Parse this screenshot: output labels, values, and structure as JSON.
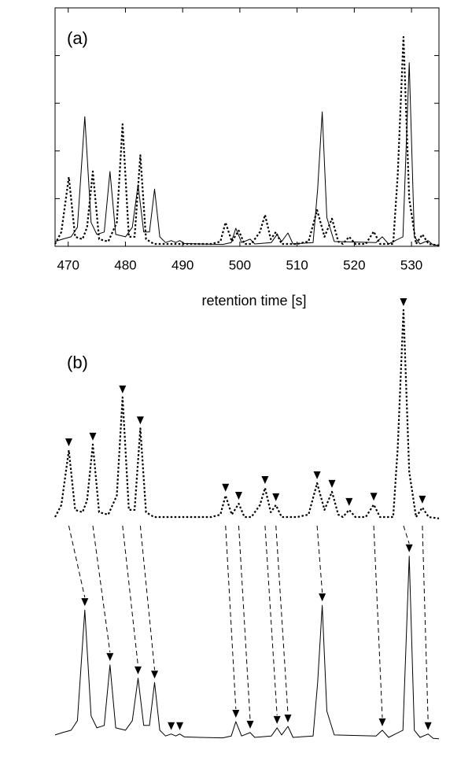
{
  "chart_data": [
    {
      "type": "line",
      "annotation": "(a)",
      "xlabel": "retention time [s]",
      "xlim": [
        467.7,
        534.8
      ],
      "xticks": [
        470,
        480,
        490,
        500,
        510,
        520,
        530
      ],
      "ylim": [
        0,
        5
      ],
      "yticks": [
        1,
        2,
        3,
        4
      ],
      "series": [
        {
          "style": "solid",
          "color": "#000000",
          "x": [
            467.7,
            469,
            470.5,
            471.6,
            472.9,
            474,
            475,
            476.3,
            477.3,
            478.3,
            480,
            481.2,
            482.2,
            483.2,
            484.2,
            485.1,
            486,
            487,
            488,
            488.8,
            489.5,
            490.3,
            493,
            497,
            498.5,
            499.3,
            500.3,
            501.8,
            502.6,
            505.5,
            506.5,
            507.3,
            508.4,
            509.3,
            512.8,
            513.6,
            514.4,
            515.2,
            516.5,
            523.8,
            524.9,
            526,
            528.5,
            529.6,
            530.5,
            531.5,
            532.9,
            533.8,
            534.8
          ],
          "values": [
            0.1,
            0.15,
            0.2,
            0.4,
            2.72,
            0.5,
            0.25,
            0.3,
            1.57,
            0.25,
            0.2,
            0.4,
            1.29,
            0.3,
            0.3,
            1.2,
            0.2,
            0.08,
            0.12,
            0.08,
            0.12,
            0.06,
            0.05,
            0.04,
            0.08,
            0.38,
            0.08,
            0.15,
            0.05,
            0.08,
            0.25,
            0.1,
            0.28,
            0.05,
            0.08,
            1.2,
            2.82,
            0.6,
            0.1,
            0.08,
            0.2,
            0.05,
            0.2,
            3.85,
            0.2,
            0.05,
            0.12,
            0.03,
            0.02
          ]
        },
        {
          "style": "dotted",
          "color": "#000000",
          "x": [
            467.7,
            468.8,
            470.1,
            471.2,
            472.5,
            473.3,
            474.3,
            475.4,
            477,
            478.5,
            479.5,
            480.6,
            481.6,
            482.6,
            483.6,
            485,
            490,
            495,
            496.6,
            497.5,
            498.6,
            499.8,
            500.8,
            502,
            503.5,
            504.4,
            505.4,
            506.3,
            507.3,
            510,
            512,
            513.5,
            514.8,
            516.1,
            517.2,
            518,
            519.1,
            520.2,
            522,
            523.4,
            524.5,
            526.8,
            527.6,
            528.6,
            529.6,
            530.8,
            531.9,
            533,
            534.8
          ],
          "values": [
            0.05,
            0.3,
            1.45,
            0.2,
            0.15,
            0.4,
            1.57,
            0.15,
            0.1,
            0.5,
            2.56,
            0.2,
            0.2,
            1.91,
            0.15,
            0.05,
            0.05,
            0.05,
            0.1,
            0.5,
            0.1,
            0.33,
            0.05,
            0.05,
            0.3,
            0.66,
            0.15,
            0.3,
            0.05,
            0.05,
            0.1,
            0.76,
            0.2,
            0.58,
            0.1,
            0.05,
            0.2,
            0.05,
            0.05,
            0.31,
            0.05,
            0.05,
            1.5,
            4.39,
            1.0,
            0.05,
            0.25,
            0.05,
            0.02
          ]
        }
      ]
    },
    {
      "type": "alignment",
      "annotation": "(b)",
      "series": [
        {
          "peaks": [
            472.9,
            477.3,
            482.2,
            485.1,
            488,
            489.5,
            499.3,
            501.8,
            506.5,
            508.4,
            514.4,
            524.9,
            529.6,
            532.9
          ]
        },
        {
          "peaks": [
            470.1,
            474.3,
            479.5,
            482.6,
            497.5,
            499.8,
            504.4,
            506.3,
            513.5,
            516.1,
            519.1,
            523.4,
            528.6,
            531.9
          ]
        }
      ],
      "matches": [
        [
          470.1,
          472.9
        ],
        [
          474.3,
          477.3
        ],
        [
          479.5,
          482.2
        ],
        [
          482.6,
          485.1
        ],
        [
          497.5,
          499.3
        ],
        [
          499.8,
          501.8
        ],
        [
          504.4,
          506.5
        ],
        [
          506.3,
          508.4
        ],
        [
          513.5,
          514.4
        ],
        [
          523.4,
          524.9
        ],
        [
          528.6,
          529.6
        ],
        [
          531.9,
          532.9
        ]
      ]
    }
  ]
}
